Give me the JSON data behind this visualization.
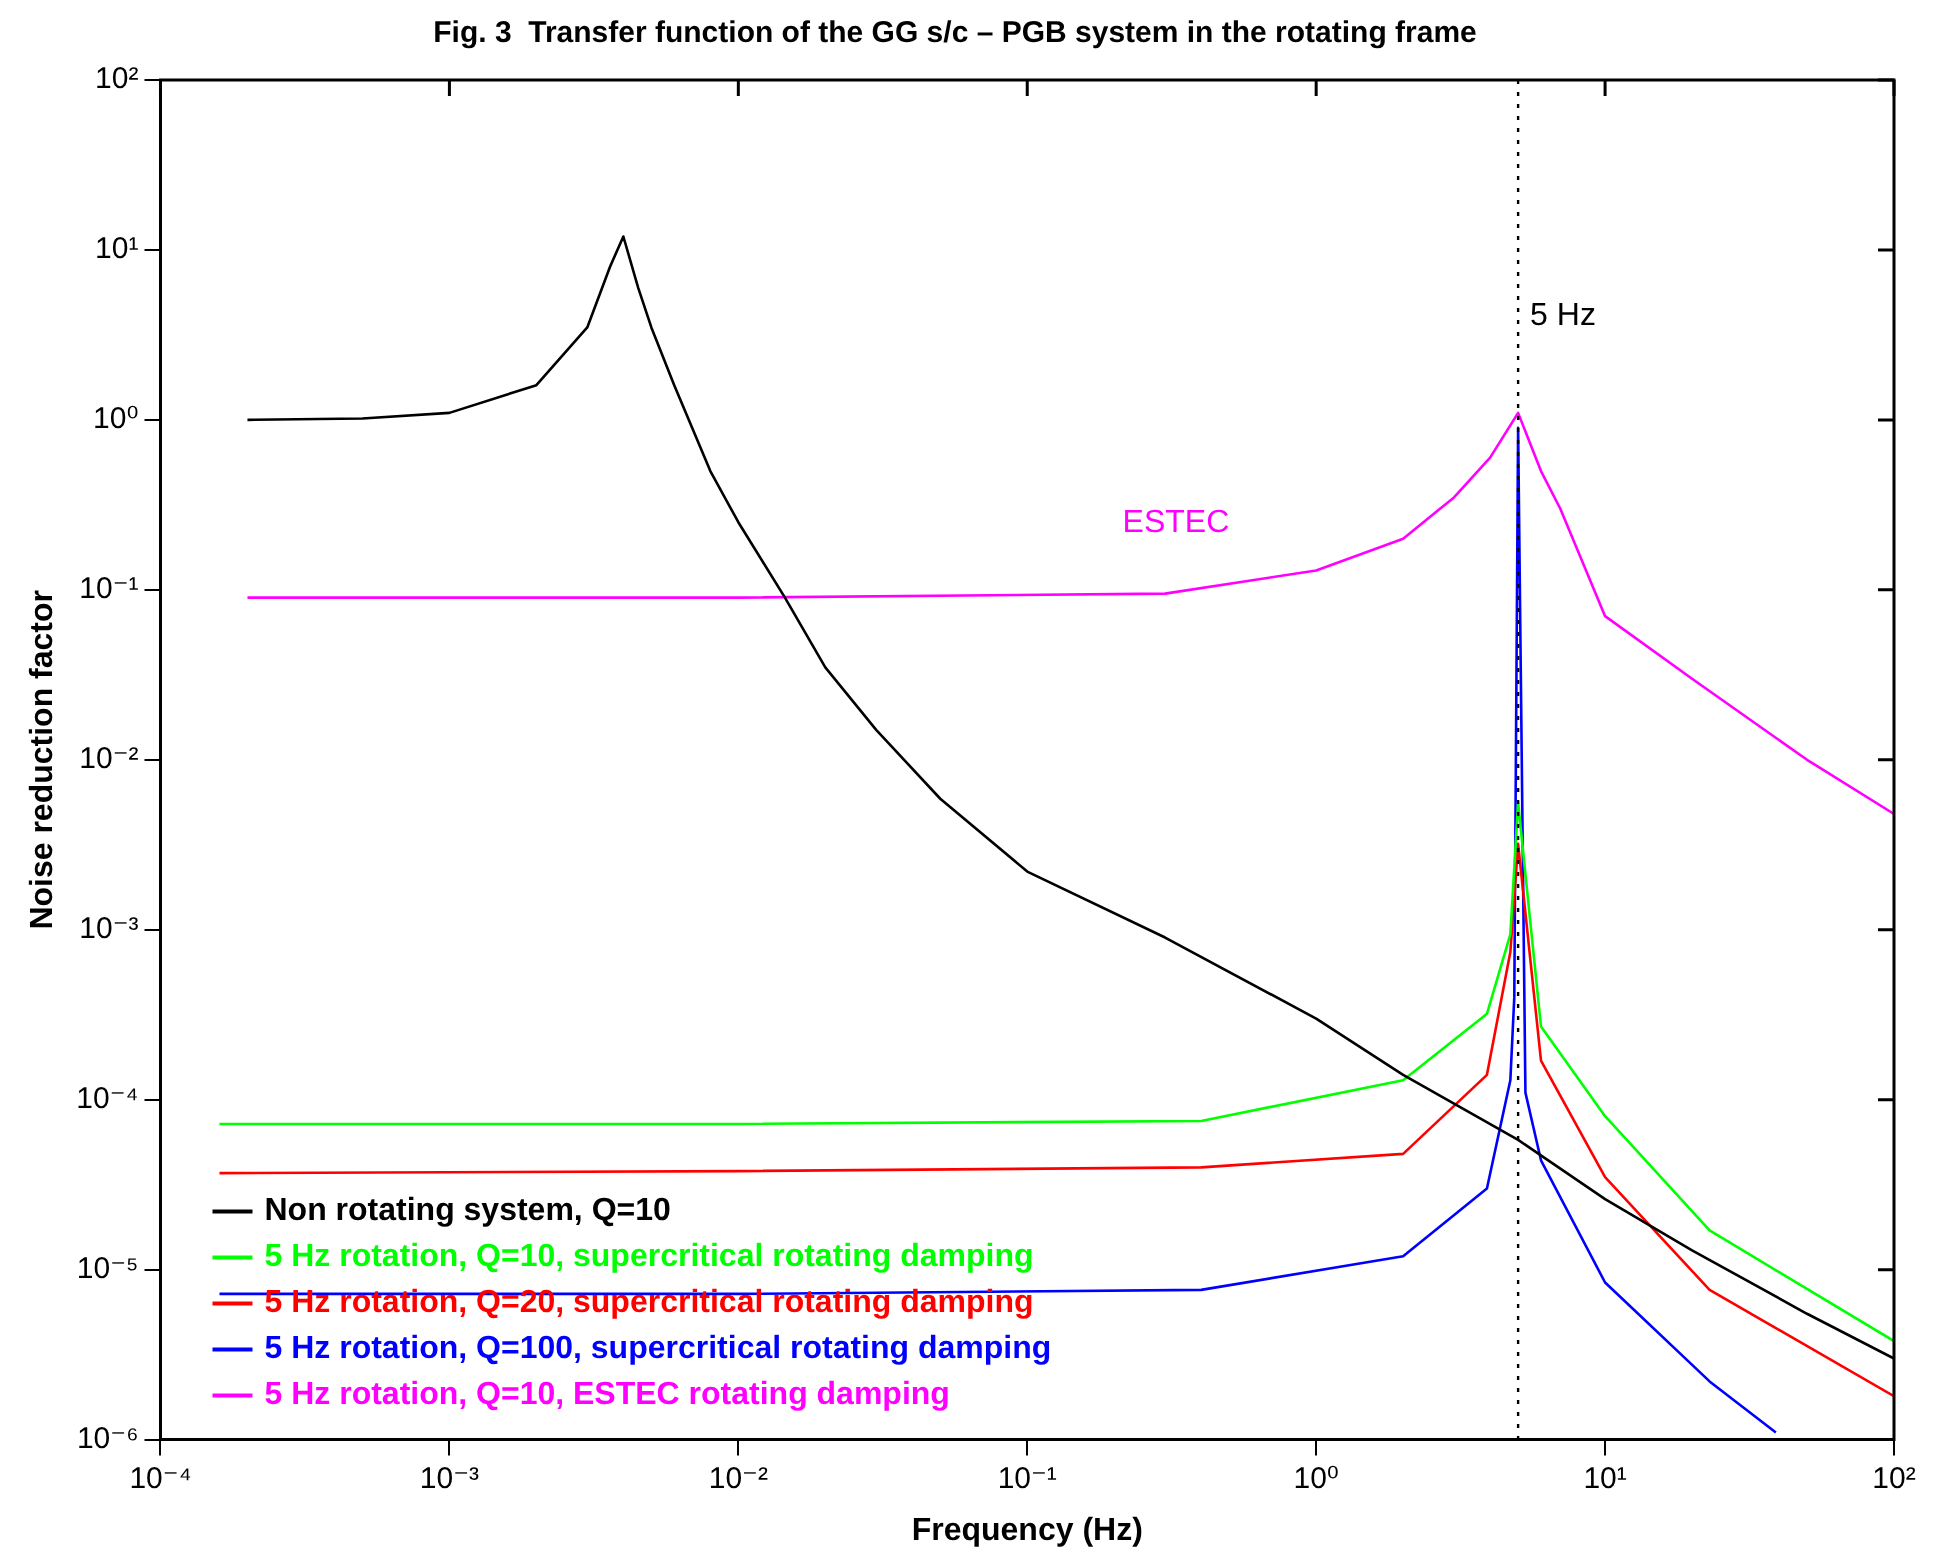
{
  "chart_data": {
    "type": "line",
    "title": "Fig. 3  Transfer function of the GG s/c – PGB system in the rotating frame",
    "xlabel": "Frequency (Hz)",
    "ylabel": "Noise reduction factor",
    "log": "xy",
    "grid": false,
    "legend": "bottom left",
    "marker": "none",
    "line_style": "solid",
    "xlim": [
      0.0001,
      100
    ],
    "ylim": [
      1e-06,
      100
    ],
    "xticks": [
      {
        "value": 0.0001,
        "label": "10⁻⁴"
      },
      {
        "value": 0.001,
        "label": "10⁻³"
      },
      {
        "value": 0.01,
        "label": "10⁻²"
      },
      {
        "value": 0.1,
        "label": "10⁻¹"
      },
      {
        "value": 1,
        "label": "10⁰"
      },
      {
        "value": 10,
        "label": "10¹"
      },
      {
        "value": 100,
        "label": "10²"
      }
    ],
    "yticks": [
      {
        "value": 1e-06,
        "label": "10⁻⁶"
      },
      {
        "value": 1e-05,
        "label": "10⁻⁵"
      },
      {
        "value": 0.0001,
        "label": "10⁻⁴"
      },
      {
        "value": 0.001,
        "label": "10⁻³"
      },
      {
        "value": 0.01,
        "label": "10⁻²"
      },
      {
        "value": 0.1,
        "label": "10⁻¹"
      },
      {
        "value": 1,
        "label": "10⁰"
      },
      {
        "value": 10,
        "label": "10¹"
      },
      {
        "value": 100,
        "label": "10²"
      }
    ],
    "ref_lines": [
      {
        "axis": "x",
        "value": 5,
        "label": "5 Hz",
        "color": "#000000",
        "line_style": "dotted"
      }
    ],
    "annotations": [
      "ESTEC"
    ],
    "series": [
      {
        "name": "Non rotating system, Q=10",
        "color": "#000000",
        "x": [
          0.0002,
          0.0005,
          0.001,
          0.002,
          0.003,
          0.0036,
          0.004,
          0.0045,
          0.005,
          0.006,
          0.008,
          0.01,
          0.0145,
          0.02,
          0.03,
          0.05,
          0.1,
          0.3,
          1,
          2,
          5,
          10,
          20,
          50,
          100
        ],
        "values": [
          1.0,
          1.02,
          1.1,
          1.6,
          3.5,
          8,
          12,
          6,
          3.5,
          1.6,
          0.5,
          0.25,
          0.09,
          0.035,
          0.015,
          0.0059,
          0.0022,
          0.0009,
          0.0003,
          0.00014,
          5.8e-05,
          2.6e-05,
          1.3e-05,
          5.5e-06,
          3e-06
        ]
      },
      {
        "name": "5 Hz rotation, Q=10, supercritical rotating damping",
        "color": "#00ff00",
        "x": [
          0.00016,
          0.01,
          0.4,
          2,
          3.9,
          4.7,
          5,
          6,
          10,
          23,
          100
        ],
        "values": [
          7.2e-05,
          7.2e-05,
          7.5e-05,
          0.00013,
          0.00032,
          0.00094,
          0.0056,
          0.00027,
          8e-05,
          1.7e-05,
          3.8e-06
        ]
      },
      {
        "name": "5 Hz rotation, Q=20, supercritical rotating damping",
        "color": "#ff0000",
        "x": [
          0.00016,
          0.01,
          0.4,
          2,
          3.9,
          4.7,
          5,
          6,
          10,
          23,
          100
        ],
        "values": [
          3.7e-05,
          3.8e-05,
          4e-05,
          4.8e-05,
          0.00014,
          0.00074,
          0.0032,
          0.00017,
          3.5e-05,
          7.6e-06,
          1.8e-06
        ]
      },
      {
        "name": "5 Hz rotation, Q=100, supercritical rotating damping",
        "color": "#0000ff",
        "x": [
          0.00016,
          0.01,
          0.4,
          2,
          3.9,
          4.7,
          4.85,
          5,
          5.3,
          6,
          10,
          23,
          39
        ],
        "values": [
          7.2e-06,
          7.2e-06,
          7.6e-06,
          1.2e-05,
          3e-05,
          0.00013,
          0.0004,
          0.9,
          0.00011,
          4.4e-05,
          8.4e-06,
          2.2e-06,
          1.1e-06
        ]
      },
      {
        "name": "5 Hz rotation, Q=10, ESTEC rotating damping",
        "color": "#ff00ff",
        "x": [
          0.0002,
          0.01,
          0.3,
          1,
          2,
          3,
          4,
          5,
          6,
          7,
          10,
          20,
          50,
          100
        ],
        "values": [
          0.09,
          0.09,
          0.095,
          0.13,
          0.2,
          0.35,
          0.6,
          1.1,
          0.5,
          0.3,
          0.07,
          0.03,
          0.01,
          0.0048
        ]
      }
    ]
  }
}
